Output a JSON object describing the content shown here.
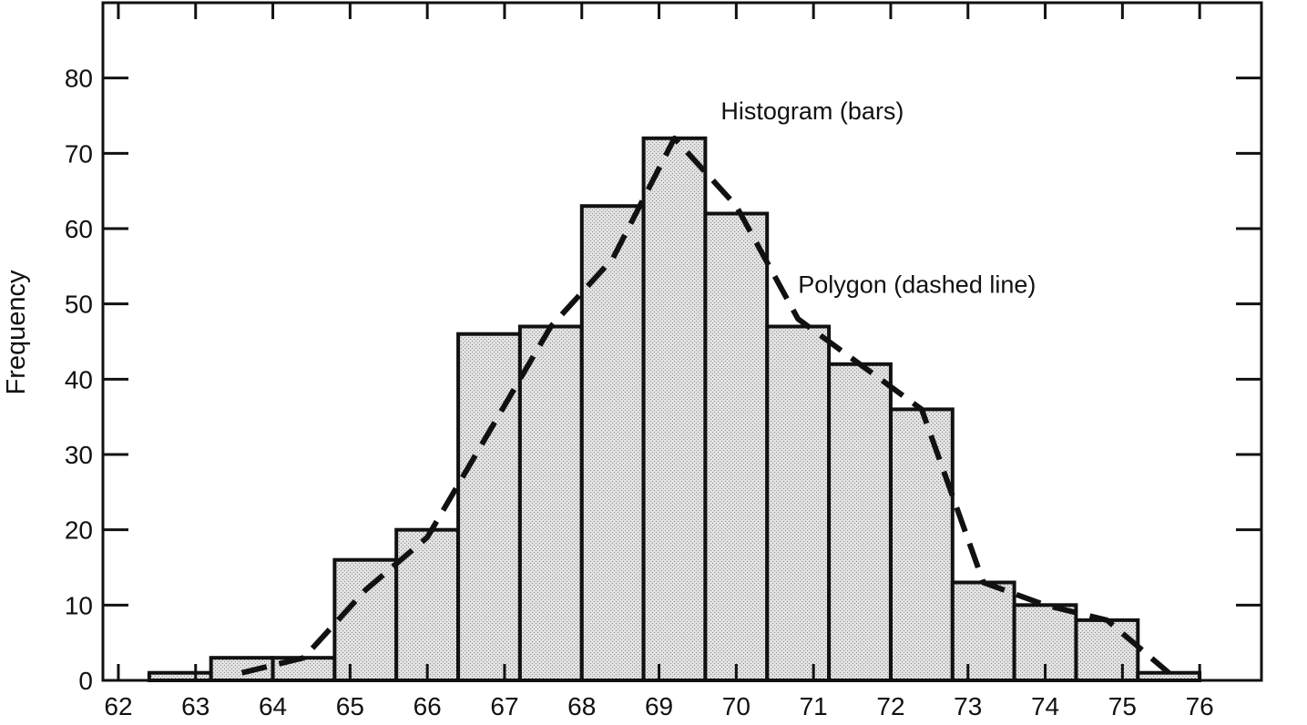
{
  "chart_data": {
    "type": "bar",
    "title": "",
    "xlabel": "",
    "ylabel": "Frequency",
    "x_ticks": [
      62,
      63,
      64,
      65,
      66,
      67,
      68,
      69,
      70,
      71,
      72,
      73,
      74,
      75,
      76
    ],
    "x_range": [
      61.8,
      76.8
    ],
    "y_ticks": [
      0,
      10,
      20,
      30,
      40,
      50,
      60,
      70,
      80
    ],
    "ylim": [
      0,
      90
    ],
    "bin_width": 0.8,
    "bins": [
      {
        "start": 62.4,
        "end": 63.2,
        "value": 1
      },
      {
        "start": 63.2,
        "end": 64.0,
        "value": 3
      },
      {
        "start": 64.0,
        "end": 64.8,
        "value": 3
      },
      {
        "start": 64.8,
        "end": 65.6,
        "value": 16
      },
      {
        "start": 65.6,
        "end": 66.4,
        "value": 20
      },
      {
        "start": 66.4,
        "end": 67.2,
        "value": 46
      },
      {
        "start": 67.2,
        "end": 68.0,
        "value": 47
      },
      {
        "start": 68.0,
        "end": 68.8,
        "value": 63
      },
      {
        "start": 68.8,
        "end": 69.6,
        "value": 72
      },
      {
        "start": 69.6,
        "end": 70.4,
        "value": 62
      },
      {
        "start": 70.4,
        "end": 71.2,
        "value": 47
      },
      {
        "start": 71.2,
        "end": 72.0,
        "value": 42
      },
      {
        "start": 72.0,
        "end": 72.8,
        "value": 36
      },
      {
        "start": 72.8,
        "end": 73.6,
        "value": 13
      },
      {
        "start": 73.6,
        "end": 74.4,
        "value": 10
      },
      {
        "start": 74.4,
        "end": 75.2,
        "value": 8
      },
      {
        "start": 75.2,
        "end": 76.0,
        "value": 1
      }
    ],
    "polygon_points": [
      {
        "x": 63.6,
        "y": 1
      },
      {
        "x": 64.4,
        "y": 3
      },
      {
        "x": 65.2,
        "y": 12
      },
      {
        "x": 66.0,
        "y": 19
      },
      {
        "x": 66.8,
        "y": 33
      },
      {
        "x": 67.6,
        "y": 47
      },
      {
        "x": 68.4,
        "y": 56
      },
      {
        "x": 69.2,
        "y": 72
      },
      {
        "x": 70.0,
        "y": 63
      },
      {
        "x": 70.8,
        "y": 48
      },
      {
        "x": 71.6,
        "y": 42
      },
      {
        "x": 72.4,
        "y": 36
      },
      {
        "x": 73.2,
        "y": 13
      },
      {
        "x": 74.0,
        "y": 10
      },
      {
        "x": 74.8,
        "y": 8
      },
      {
        "x": 75.6,
        "y": 1
      }
    ],
    "annotations": [
      {
        "text": "Histogram (bars)",
        "x": 69.8,
        "y": 74.5
      },
      {
        "text": "Polygon (dashed line)",
        "x": 70.8,
        "y": 51.5
      }
    ],
    "grid": false,
    "legend": "none",
    "colors": {
      "bar_fill": "#d6d6d6",
      "bar_edge": "#111111",
      "polygon": "#111111",
      "axis": "#111111"
    }
  }
}
